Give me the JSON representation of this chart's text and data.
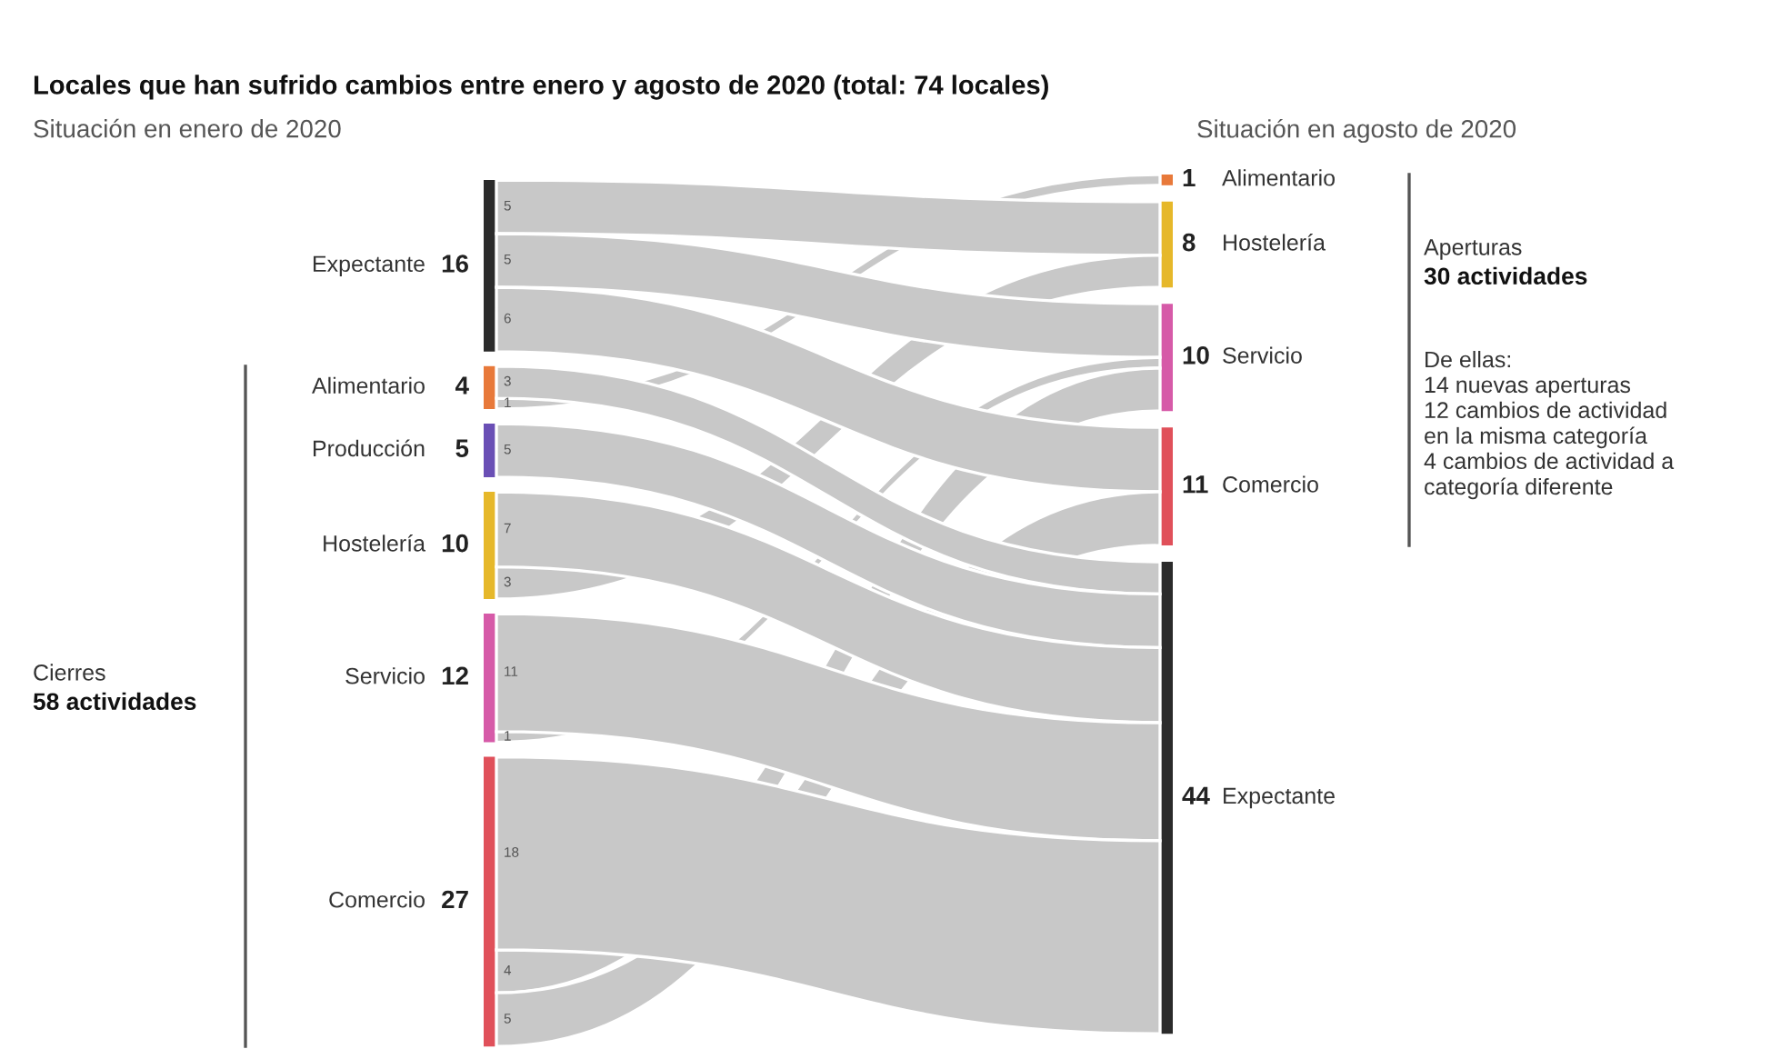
{
  "chart_data": {
    "type": "other",
    "title": "Locales que han sufrido cambios entre enero y agosto de 2020 (total: 74 locales)",
    "categories": [
      "Expectante",
      "Alimentario",
      "Producción",
      "Hostelería",
      "Servicio",
      "Comercio"
    ],
    "values": [
      16,
      4,
      5,
      10,
      12,
      27
    ],
    "colors": [
      "#2b2b2b",
      "#e8793a",
      "#6a4fb5",
      "#e6b82a",
      "#d65aa8",
      "#e0505a"
    ],
    "data_labels": true,
    "series": [
      {
        "name": "Alimentario",
        "color": "#e8793a",
        "colors": [
          null,
          "#c8c8c8",
          null,
          null,
          null,
          null
        ],
        "values": [
          null,
          1,
          null,
          null,
          null,
          null
        ]
      },
      {
        "name": "Hostelería",
        "color": "#e6b82a",
        "colors": [
          "#c8c8c8",
          null,
          null,
          "#c8c8c8",
          null,
          null
        ],
        "values": [
          5,
          null,
          null,
          3,
          null,
          null
        ]
      },
      {
        "name": "Servicio",
        "color": "#d65aa8",
        "colors": [
          "#c8c8c8",
          null,
          null,
          null,
          "#c8c8c8",
          "#c8c8c8"
        ],
        "values": [
          5,
          null,
          null,
          null,
          1,
          4
        ]
      },
      {
        "name": "Comercio",
        "color": "#e0505a",
        "colors": [
          "#c8c8c8",
          null,
          null,
          null,
          null,
          "#c8c8c8"
        ],
        "values": [
          6,
          null,
          null,
          null,
          null,
          5
        ]
      },
      {
        "name": "Expectante",
        "color": "#2b2b2b",
        "colors": [
          null,
          "#c8c8c8",
          "#c8c8c8",
          "#c8c8c8",
          "#c8c8c8",
          "#c8c8c8"
        ],
        "values": [
          null,
          3,
          5,
          7,
          11,
          18
        ]
      }
    ],
    "totals": [
      "1",
      "8",
      "10",
      "11",
      "44"
    ],
    "annotations": [
      "Situación en enero de 2020",
      "Situación en agosto de 2020",
      "Cierres",
      "58 actividades",
      "Aperturas",
      "30 actividades",
      "De ellas:\n14 nuevas aperturas\n12 cambios de actividad\nen la misma categoría\n4 cambios de actividad a\ncategoría diferente"
    ]
  }
}
